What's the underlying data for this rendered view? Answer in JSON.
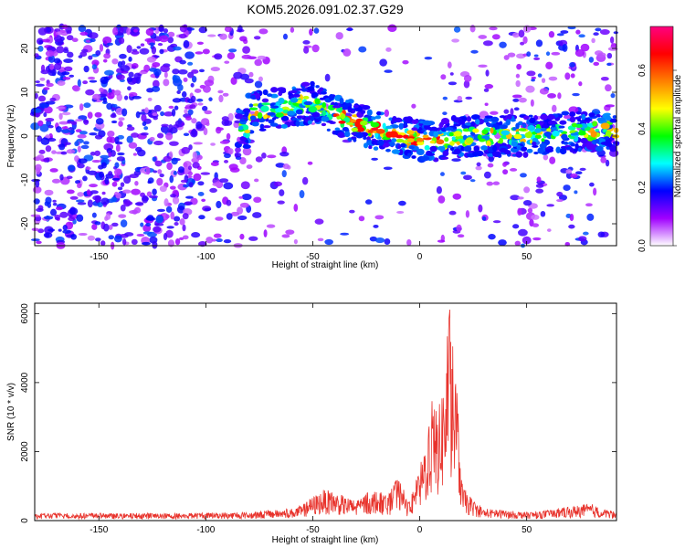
{
  "title": "KOM5.2026.091.02.37.G29",
  "chart_data": [
    {
      "type": "heatmap",
      "xlabel": "Height of straight line (km)",
      "ylabel": "Frequency (Hz)",
      "xlim": [
        -180,
        92
      ],
      "ylim": [
        -25,
        25
      ],
      "xticks": [
        -150,
        -100,
        -50,
        0,
        50
      ],
      "yticks": [
        -20,
        -10,
        0,
        10,
        20
      ],
      "grid": false,
      "colorbar": {
        "label": "Normalized spectral amplitude",
        "range": [
          0,
          0.75
        ],
        "ticks": [
          "0.0",
          "0.2",
          "0.4",
          "0.6"
        ],
        "colormap": [
          "#ffffff",
          "#a000ff",
          "#0000ff",
          "#00ffff",
          "#00ff00",
          "#ffff00",
          "#ff8000",
          "#ff0000",
          "#ff0080"
        ]
      },
      "ridge": [
        {
          "x": -80,
          "y": 5
        },
        {
          "x": -60,
          "y": 7
        },
        {
          "x": -50,
          "y": 7.5
        },
        {
          "x": -40,
          "y": 5
        },
        {
          "x": -30,
          "y": 3
        },
        {
          "x": -20,
          "y": 1.5
        },
        {
          "x": -10,
          "y": 0
        },
        {
          "x": 0,
          "y": -1
        },
        {
          "x": 10,
          "y": -1
        },
        {
          "x": 20,
          "y": 0
        },
        {
          "x": 40,
          "y": 0
        },
        {
          "x": 60,
          "y": 0.5
        },
        {
          "x": 90,
          "y": 1.5
        }
      ]
    },
    {
      "type": "line",
      "xlabel": "Height of straight line (km)",
      "ylabel": "SNR (10 * v/v)",
      "xlim": [
        -180,
        92
      ],
      "ylim": [
        0,
        6300
      ],
      "xticks": [
        -150,
        -100,
        -50,
        0,
        50
      ],
      "yticks": [
        0,
        2000,
        4000,
        6000
      ],
      "color": "#e8332c",
      "series": [
        {
          "x": [
            -180,
            -170,
            -160,
            -150,
            -140,
            -130,
            -120,
            -110,
            -100,
            -90,
            -80,
            -70,
            -60,
            -55,
            -50,
            -45,
            -40,
            -35,
            -30,
            -25,
            -20,
            -15,
            -10,
            -5,
            0,
            3,
            6,
            9,
            12,
            14,
            16,
            18,
            20,
            25,
            30,
            40,
            50,
            60,
            70,
            80,
            85,
            92
          ],
          "y": [
            200,
            230,
            210,
            220,
            200,
            230,
            210,
            220,
            230,
            240,
            250,
            300,
            350,
            450,
            700,
            900,
            850,
            700,
            600,
            800,
            900,
            700,
            1300,
            500,
            1500,
            2500,
            3600,
            3300,
            4600,
            6300,
            5000,
            3200,
            1000,
            600,
            350,
            300,
            250,
            300,
            400,
            500,
            350,
            250
          ]
        }
      ]
    }
  ]
}
